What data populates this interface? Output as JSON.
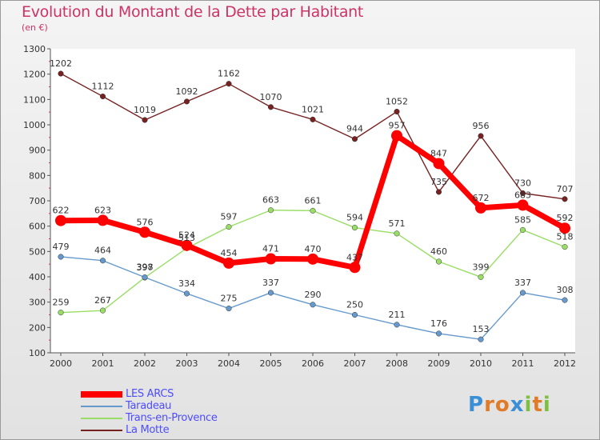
{
  "header": {
    "title": "Evolution du Montant de la Dette par Habitant",
    "unit": "(en €)"
  },
  "logo": {
    "letters": [
      {
        "ch": "P",
        "color": "#3b8fd6"
      },
      {
        "ch": "r",
        "color": "#e07b2a"
      },
      {
        "ch": "o",
        "color": "#e07b2a"
      },
      {
        "ch": "x",
        "color": "#3b8fd6"
      },
      {
        "ch": "i",
        "color": "#7fbf3f"
      },
      {
        "ch": "t",
        "color": "#e07b2a"
      },
      {
        "ch": "i",
        "color": "#7fbf3f"
      }
    ]
  },
  "chart_data": {
    "type": "line",
    "title": "Evolution du Montant de la Dette par Habitant",
    "subtitle": "(en €)",
    "x": [
      "2000",
      "2001",
      "2002",
      "2003",
      "2004",
      "2005",
      "2006",
      "2007",
      "2008",
      "2009",
      "2010",
      "2011",
      "2012"
    ],
    "ylim": [
      100,
      1300
    ],
    "yticks": [
      100,
      200,
      300,
      400,
      500,
      600,
      700,
      800,
      900,
      1000,
      1100,
      1200,
      1300
    ],
    "grid": false,
    "legend_position": "bottom-left",
    "series": [
      {
        "name": "LES ARCS",
        "color": "#ff0000",
        "values": [
          622,
          623,
          576,
          524,
          454,
          471,
          470,
          437,
          957,
          847,
          672,
          683,
          592
        ]
      },
      {
        "name": "Taradeau",
        "color": "#6699cc",
        "values": [
          479,
          464,
          398,
          334,
          275,
          337,
          290,
          250,
          211,
          176,
          153,
          337,
          308
        ]
      },
      {
        "name": "Trans-en-Provence",
        "color": "#99dd66",
        "values": [
          259,
          267,
          397,
          513,
          597,
          663,
          661,
          594,
          571,
          460,
          399,
          585,
          518
        ]
      },
      {
        "name": "La Motte",
        "color": "#772222",
        "values": [
          1202,
          1112,
          1019,
          1092,
          1162,
          1070,
          1021,
          944,
          1052,
          735,
          956,
          730,
          707
        ]
      }
    ]
  }
}
